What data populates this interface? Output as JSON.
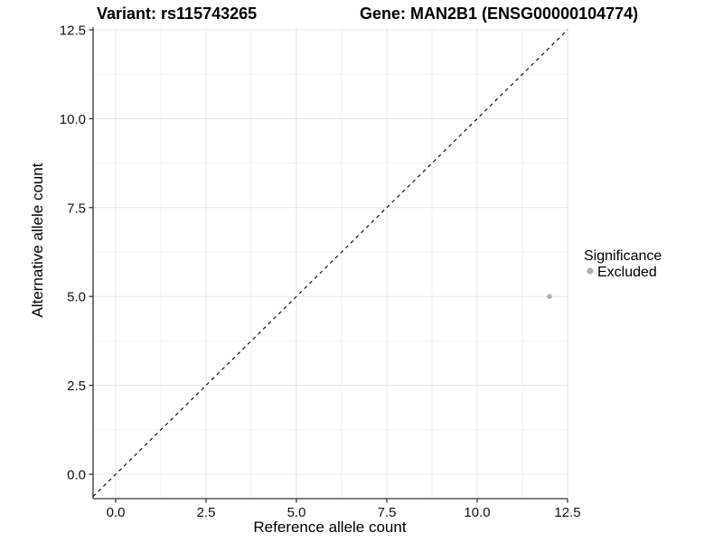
{
  "chart_data": {
    "type": "scatter",
    "titles": {
      "left": "Variant: rs115743265",
      "right": "Gene: MAN2B1 (ENSG00000104774)"
    },
    "xlabel": "Reference allele count",
    "ylabel": "Alternative allele count",
    "xlim": [
      -0.625,
      12.5
    ],
    "ylim": [
      -0.69,
      12.6
    ],
    "x_ticks": {
      "values": [
        0,
        2.5,
        5,
        7.5,
        10,
        12.5
      ],
      "labels": [
        "0.0",
        "2.5",
        "5.0",
        "7.5",
        "10.0",
        "12.5"
      ]
    },
    "y_ticks": {
      "values": [
        0,
        2.5,
        5,
        7.5,
        10,
        12.5
      ],
      "labels": [
        "0.0",
        "2.5",
        "5.0",
        "7.5",
        "10.0",
        "12.5"
      ]
    },
    "grid": {
      "major": true,
      "minor": true
    },
    "reference_line": {
      "kind": "identity",
      "equation": "y = x",
      "style": "dashed",
      "color": "#000000"
    },
    "series": [
      {
        "name": "Excluded",
        "color": "#b0b0b0",
        "point_radius": 2.8,
        "points": [
          [
            12,
            5
          ]
        ]
      }
    ],
    "legend": {
      "title": "Significance",
      "position": "right",
      "entries": [
        {
          "label": "Excluded",
          "color": "#b0b0b0",
          "marker": "circle"
        }
      ]
    },
    "colors": {
      "background": "#ffffff",
      "grid_major": "#e6e6e6",
      "grid_minor": "#f2f2f2",
      "axis": "#333333",
      "tick_text": "#111111"
    }
  }
}
